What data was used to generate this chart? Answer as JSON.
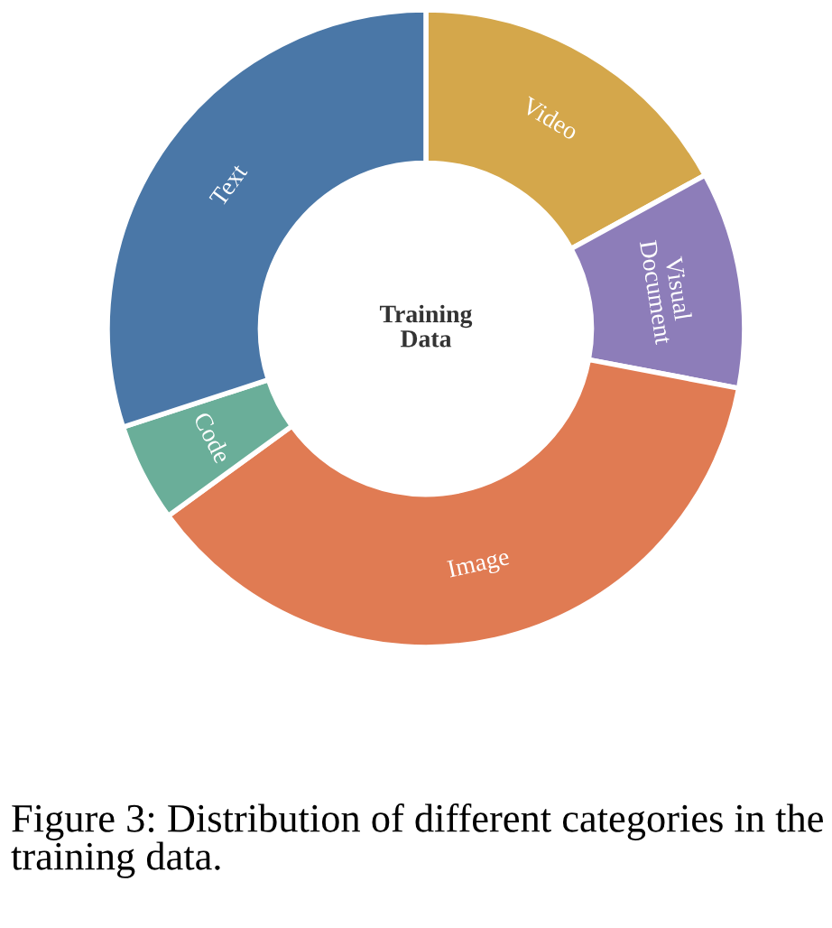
{
  "chart_data": {
    "type": "donut",
    "title": "Training\nData",
    "categories": [
      "Video",
      "Visual\nDocument",
      "Image",
      "Code",
      "Text"
    ],
    "values": [
      17,
      11,
      37,
      5,
      30
    ],
    "colors": [
      "#d4a74b",
      "#8d7db9",
      "#e07b53",
      "#6aae99",
      "#4a77a7"
    ],
    "annotations": [
      "Figure 3: Distribution of different categories in the training data."
    ],
    "legend": false
  }
}
